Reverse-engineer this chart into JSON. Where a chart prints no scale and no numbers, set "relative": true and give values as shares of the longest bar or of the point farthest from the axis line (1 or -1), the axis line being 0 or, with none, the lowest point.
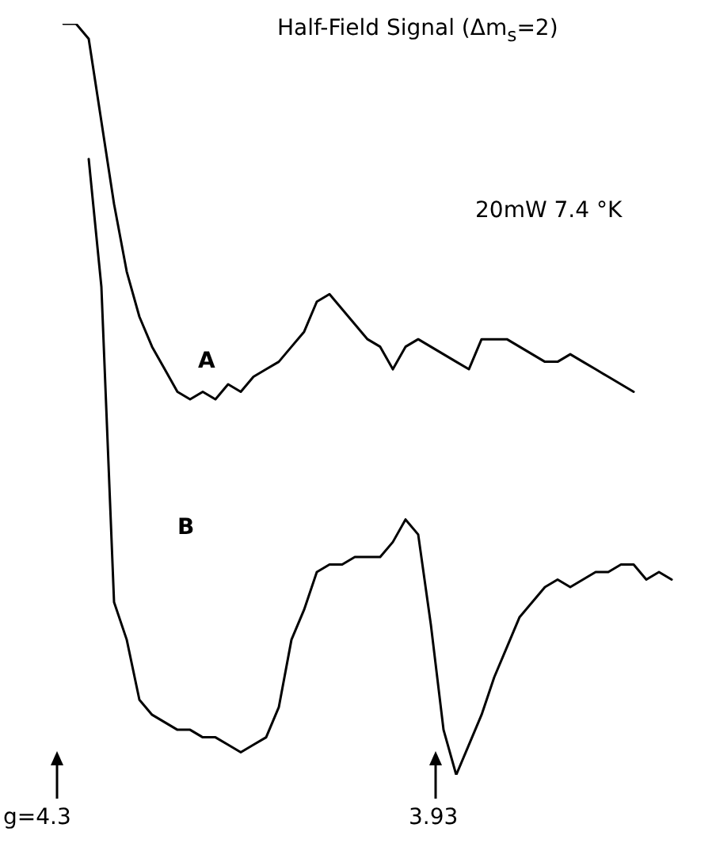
{
  "chart_data": {
    "type": "line",
    "title": "Half-Field Signal (Δm$_{s}$=2)",
    "relative": true,
    "legend": false,
    "grid": false,
    "marker": "none",
    "line_style": "solid",
    "categories": [
      null,
      null,
      null,
      null,
      null,
      null,
      null,
      null,
      null,
      null,
      null,
      null,
      null,
      null,
      null,
      null,
      null,
      null,
      null,
      null,
      null,
      null,
      null,
      null,
      null,
      null,
      null,
      null,
      null,
      null,
      null,
      null,
      null,
      null,
      null,
      null,
      null,
      null,
      null,
      null,
      null,
      null,
      null,
      null,
      null,
      null,
      null,
      null,
      null,
      null
    ],
    "series": [
      {
        "name": "A",
        "color": "#000000",
        "values": [
          1.0,
          1.0,
          0.98,
          0.87,
          0.76,
          0.67,
          0.61,
          0.57,
          0.54,
          0.51,
          0.5,
          0.51,
          0.5,
          0.52,
          0.51,
          0.53,
          0.54,
          0.55,
          0.57,
          0.59,
          0.63,
          0.64,
          0.62,
          0.6,
          0.58,
          0.57,
          0.54,
          0.57,
          0.58,
          0.57,
          0.56,
          0.55,
          0.54,
          0.58,
          0.58,
          0.58,
          0.57,
          0.56,
          0.55,
          0.55,
          0.56,
          0.55,
          0.54,
          0.53,
          0.52,
          0.51,
          null,
          null,
          null,
          null
        ]
      },
      {
        "name": "B",
        "color": "#000000",
        "values": [
          null,
          null,
          0.82,
          0.65,
          0.23,
          0.18,
          0.1,
          0.08,
          0.07,
          0.06,
          0.06,
          0.05,
          0.05,
          0.04,
          0.03,
          0.04,
          0.05,
          0.09,
          0.18,
          0.22,
          0.27,
          0.28,
          0.28,
          0.29,
          0.29,
          0.29,
          0.31,
          0.34,
          0.32,
          0.2,
          0.06,
          0.0,
          0.04,
          0.08,
          0.13,
          0.17,
          0.21,
          0.23,
          0.25,
          0.26,
          0.25,
          0.26,
          0.27,
          0.27,
          0.28,
          0.28,
          0.26,
          0.27,
          0.26,
          null
        ]
      }
    ],
    "annotations": [
      "20mW 7.4 °K",
      "g=4.3",
      "3.93"
    ]
  }
}
